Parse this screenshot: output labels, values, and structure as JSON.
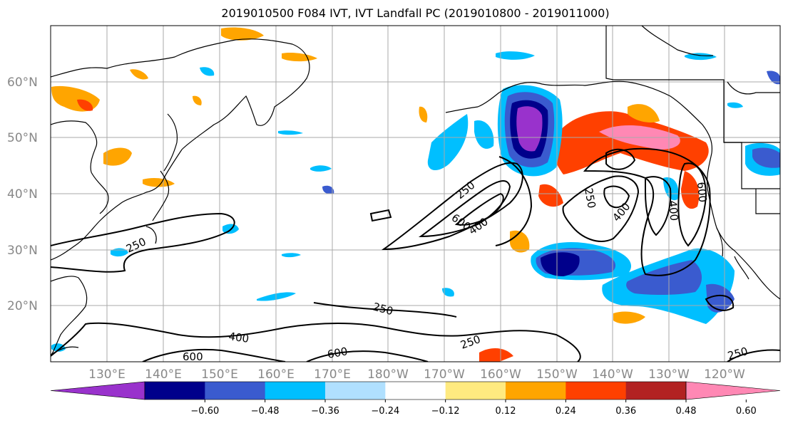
{
  "title": "2019010500 F084 IVT, IVT Landfall PC (2019010800 - 2019011000)",
  "lat_labels": [
    "60°N",
    "50°N",
    "40°N",
    "30°N",
    "20°N"
  ],
  "lon_labels": [
    "130°E",
    "140°E",
    "150°E",
    "160°E",
    "170°E",
    "180°W",
    "170°W",
    "160°W",
    "150°W",
    "140°W",
    "130°W",
    "120°W"
  ],
  "colorbar": {
    "ticks": [
      "−0.60",
      "−0.48",
      "−0.36",
      "−0.24",
      "−0.12",
      "0.12",
      "0.24",
      "0.36",
      "0.48",
      "0.60"
    ],
    "colors": [
      "#9932cc",
      "#00008b",
      "#3a5bcf",
      "#00bfff",
      "#b0e0ff",
      "#ffffff",
      "#ffea80",
      "#ffa500",
      "#ff4000",
      "#b22222",
      "#ff88b4"
    ]
  },
  "contour_labels": [
    "250",
    "600",
    "400",
    "250",
    "400",
    "400",
    "600",
    "250",
    "250",
    "400",
    "600",
    "600",
    "250",
    "250"
  ],
  "colors": {
    "land": "#000000",
    "grid": "#aaaaaa"
  }
}
